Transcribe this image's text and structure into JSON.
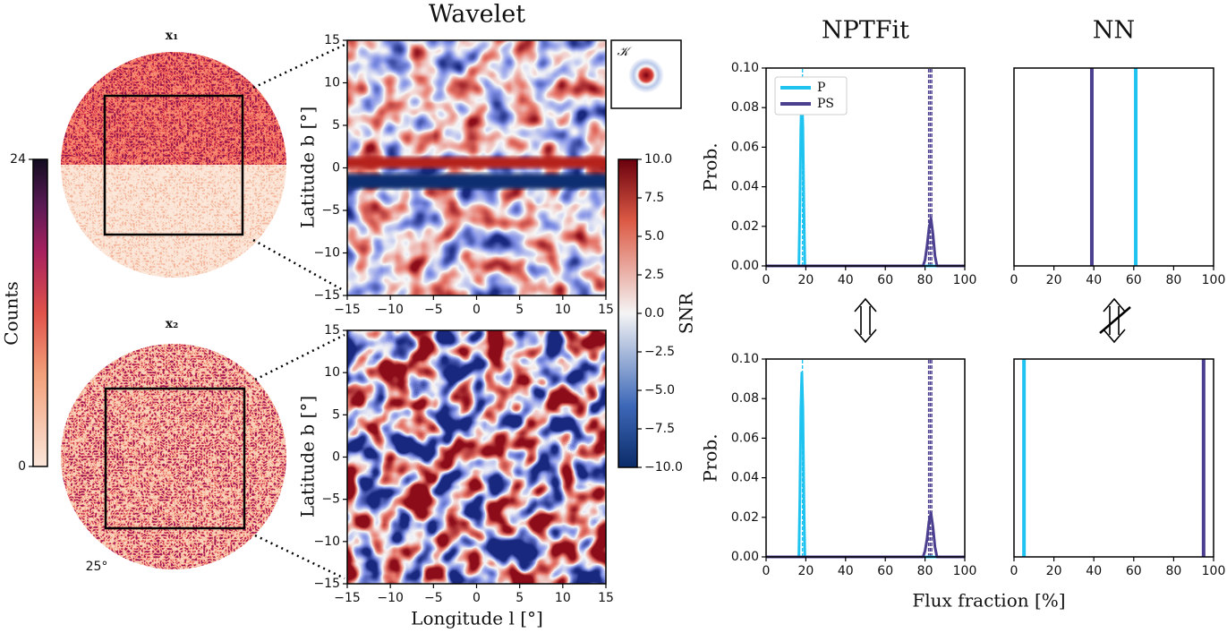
{
  "maps": {
    "x1_label": "x₁",
    "x2_label": "x₂",
    "angle": "25°",
    "counts": {
      "label": "Counts",
      "ylim": [
        0,
        24
      ],
      "yticks": [
        0,
        24
      ]
    }
  },
  "wavelet": {
    "title": "Wavelet",
    "kernel": "𝒦",
    "xlabel": "Longitude l [°]",
    "ylabel": "Latitude b [°]",
    "xlim": [
      -15,
      15
    ],
    "ylim": [
      -15,
      15
    ],
    "xticks": [
      {
        "value": -15,
        "label": "−15"
      },
      {
        "value": -10,
        "label": "−10"
      },
      {
        "value": -5,
        "label": "−5"
      },
      0,
      5,
      10,
      15
    ],
    "yticks": [
      {
        "value": -15,
        "label": "−15"
      },
      {
        "value": -10,
        "label": "−10"
      },
      {
        "value": -5,
        "label": "−5"
      },
      0,
      5,
      10,
      15
    ]
  },
  "snr": {
    "label": "SNR",
    "ylim": [
      -10,
      10
    ],
    "yticks": [
      {
        "value": -10,
        "label": "−10.0"
      },
      {
        "value": -7.5,
        "label": "−7.5"
      },
      {
        "value": -5,
        "label": "−5.0"
      },
      {
        "value": -2.5,
        "label": "−2.5"
      },
      {
        "value": 0,
        "label": "0.0"
      },
      {
        "value": 2.5,
        "label": "2.5"
      },
      {
        "value": 5,
        "label": "5.0"
      },
      {
        "value": 7.5,
        "label": "7.5"
      },
      {
        "value": 10,
        "label": "10.0"
      }
    ]
  },
  "shared_xlabel": "Flux fraction [%]",
  "chart_data": [
    {
      "type": "line",
      "title": "NPTFit",
      "ylabel": "Prob.",
      "xlim": [
        0,
        100
      ],
      "ylim": [
        0,
        0.1
      ],
      "xticks": [
        0,
        20,
        40,
        60,
        80,
        100
      ],
      "yticks": [
        {
          "value": 0,
          "label": "0.00"
        },
        {
          "value": 0.02,
          "label": "0.02"
        },
        {
          "value": 0.04,
          "label": "0.04"
        },
        {
          "value": 0.06,
          "label": "0.06"
        },
        {
          "value": 0.08,
          "label": "0.08"
        },
        {
          "value": 0.1,
          "label": "0.10"
        }
      ],
      "legend": "upper left",
      "series": [
        {
          "name": "P",
          "color": "#1ec3f0",
          "x": [
            0,
            16.5,
            17,
            17.5,
            18,
            18.5,
            19,
            19.5,
            100
          ],
          "values": [
            0,
            0,
            0.03,
            0.07,
            0.088,
            0.07,
            0.03,
            0,
            0
          ],
          "quantiles": [
            18.3
          ]
        },
        {
          "name": "PS",
          "color": "#4b3f8f",
          "x": [
            0,
            79,
            80,
            81,
            82,
            83,
            84,
            85,
            86,
            100
          ],
          "values": [
            0,
            0,
            0.003,
            0.01,
            0.019,
            0.024,
            0.016,
            0.005,
            0,
            0
          ],
          "quantiles": [
            81.8,
            82.6,
            83.4
          ]
        }
      ]
    },
    {
      "type": "vline",
      "title": "NN",
      "xlim": [
        0,
        100
      ],
      "xticks": [
        0,
        20,
        40,
        60,
        80,
        100
      ],
      "series": [
        {
          "color": "#1ec3f0",
          "values": [
            61
          ]
        },
        {
          "color": "#4b3f8f",
          "values": [
            39
          ]
        }
      ]
    },
    {
      "type": "line",
      "ylabel": "Prob.",
      "xlim": [
        0,
        100
      ],
      "ylim": [
        0,
        0.1
      ],
      "xticks": [
        0,
        20,
        40,
        60,
        80,
        100
      ],
      "yticks": [
        {
          "value": 0,
          "label": "0.00"
        },
        {
          "value": 0.02,
          "label": "0.02"
        },
        {
          "value": 0.04,
          "label": "0.04"
        },
        {
          "value": 0.06,
          "label": "0.06"
        },
        {
          "value": 0.08,
          "label": "0.08"
        },
        {
          "value": 0.1,
          "label": "0.10"
        }
      ],
      "series": [
        {
          "color": "#1ec3f0",
          "x": [
            0,
            16.5,
            17,
            17.5,
            18,
            18.5,
            19,
            19.5,
            100
          ],
          "values": [
            0,
            0,
            0.03,
            0.075,
            0.093,
            0.075,
            0.03,
            0,
            0
          ],
          "quantiles": [
            18.3
          ]
        },
        {
          "color": "#4b3f8f",
          "x": [
            0,
            79,
            80,
            81,
            82,
            83,
            84,
            85,
            86,
            100
          ],
          "values": [
            0,
            0,
            0.003,
            0.009,
            0.018,
            0.022,
            0.015,
            0.005,
            0,
            0
          ],
          "quantiles": [
            81.8,
            82.6,
            83.4
          ]
        }
      ]
    },
    {
      "type": "vline",
      "xlim": [
        0,
        100
      ],
      "xticks": [
        0,
        20,
        40,
        60,
        80,
        100
      ],
      "series": [
        {
          "color": "#1ec3f0",
          "values": [
            5
          ]
        },
        {
          "color": "#4b3f8f",
          "values": [
            95
          ]
        }
      ]
    }
  ]
}
